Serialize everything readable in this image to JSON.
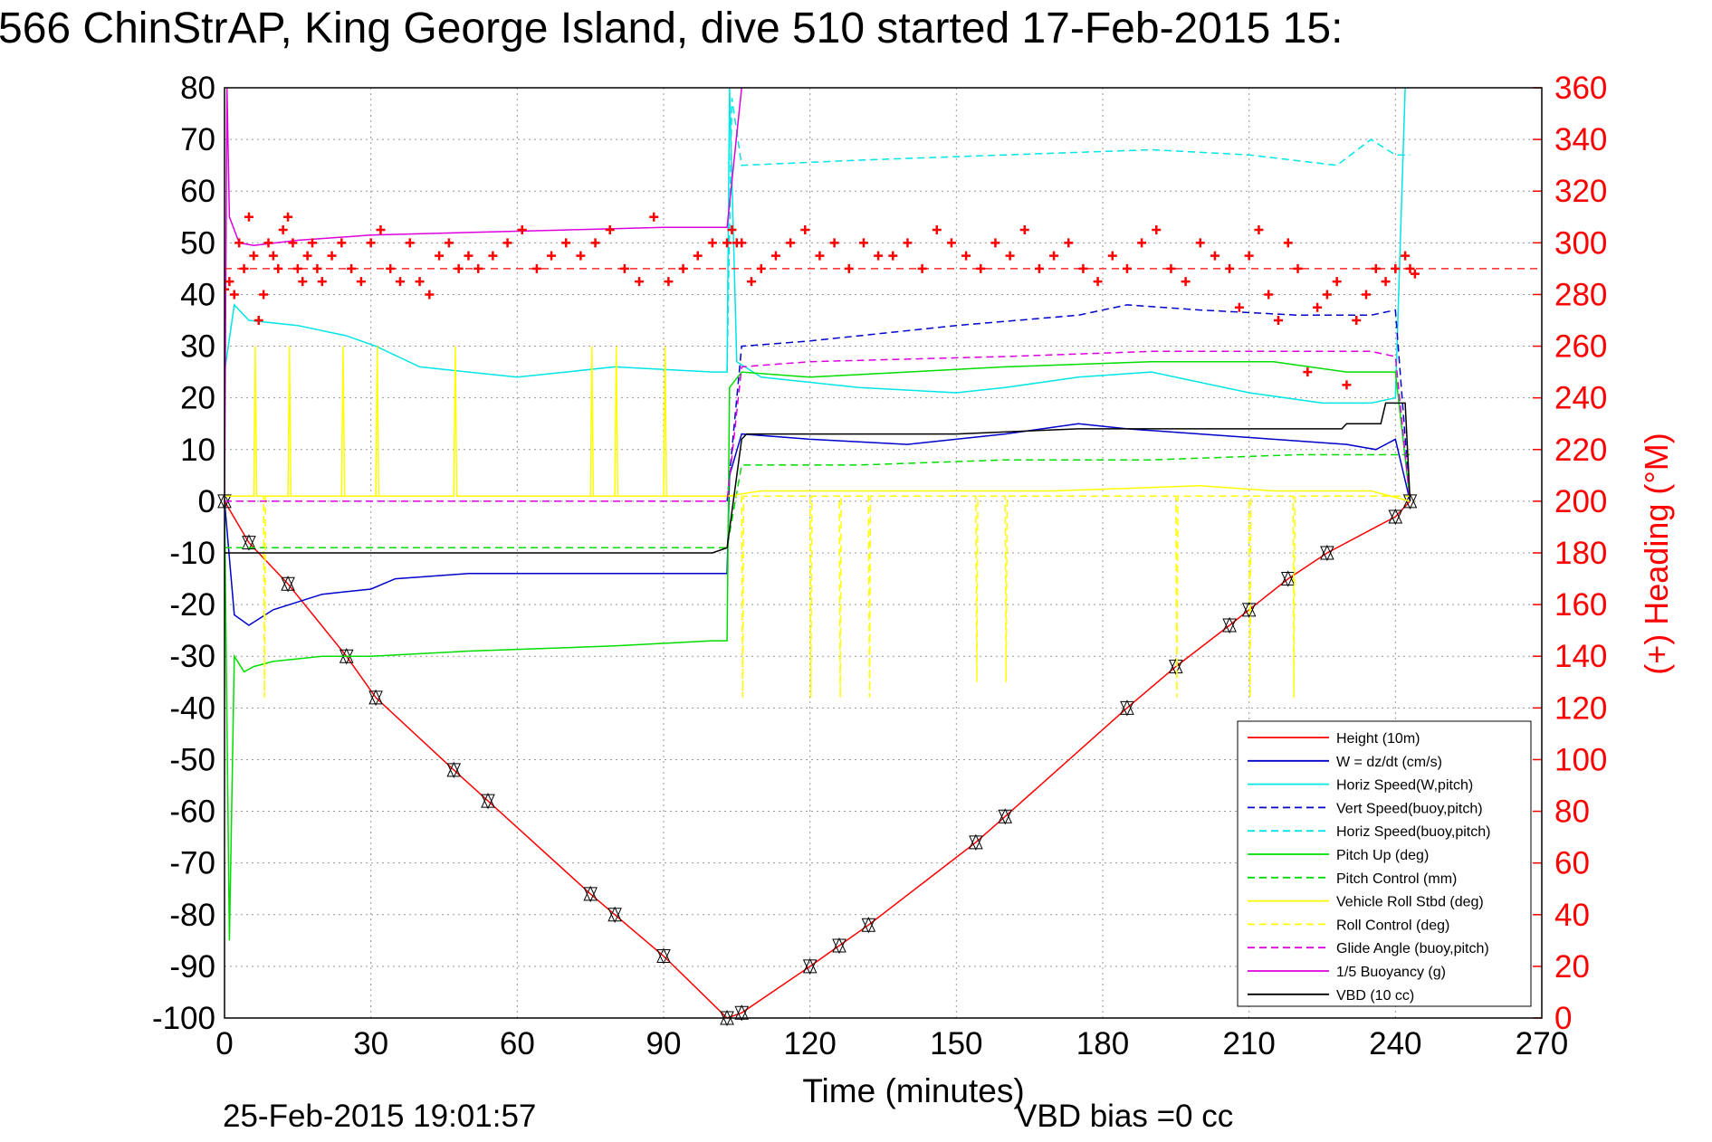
{
  "title": "566 ChinStrAP, King George Island, dive 510 started 17-Feb-2015 15:",
  "footer": {
    "timestamp": "25-Feb-2015 19:01:57",
    "vbd_bias": "VBD bias =0 cc"
  },
  "colors": {
    "red": "#ff0000",
    "blue": "#0000cc",
    "cyan": "#00e5e5",
    "green": "#00dd00",
    "yellow": "#ffff00",
    "magenta": "#dd00dd",
    "black": "#000000",
    "grid": "#999999"
  },
  "chart_data": {
    "type": "line",
    "xlabel": "Time (minutes)",
    "ylabel_right": "(+) Heading (°M)",
    "xlim": [
      0,
      270
    ],
    "ylim_left": [
      -100,
      80
    ],
    "ylim_right": [
      0,
      360
    ],
    "x_ticks": [
      "0",
      "30",
      "60",
      "90",
      "120",
      "150",
      "180",
      "210",
      "240",
      "270"
    ],
    "y_ticks_left": [
      "80",
      "70",
      "60",
      "50",
      "40",
      "30",
      "20",
      "10",
      "0",
      "-10",
      "-20",
      "-30",
      "-40",
      "-50",
      "-60",
      "-70",
      "-80",
      "-90",
      "-100"
    ],
    "y_ticks_right": [
      "360",
      "340",
      "320",
      "300",
      "280",
      "260",
      "240",
      "220",
      "200",
      "180",
      "160",
      "140",
      "120",
      "100",
      "80",
      "60",
      "40",
      "20",
      "0"
    ],
    "grid": true,
    "legend_position": "bottom-right",
    "legend": [
      {
        "label": "Height (10m)",
        "color": "#ff0000",
        "style": "solid"
      },
      {
        "label": "W = dz/dt (cm/s)",
        "color": "#0000cc",
        "style": "solid"
      },
      {
        "label": "Horiz Speed(W,pitch)",
        "color": "#00e5e5",
        "style": "solid"
      },
      {
        "label": "Vert Speed(buoy,pitch)",
        "color": "#0000cc",
        "style": "dashed"
      },
      {
        "label": "Horiz Speed(buoy,pitch)",
        "color": "#00e5e5",
        "style": "dashed"
      },
      {
        "label": "Pitch Up (deg)",
        "color": "#00dd00",
        "style": "solid"
      },
      {
        "label": "Pitch Control (mm)",
        "color": "#00dd00",
        "style": "dashed"
      },
      {
        "label": "Vehicle Roll Stbd (deg)",
        "color": "#ffff00",
        "style": "solid"
      },
      {
        "label": "Roll Control (deg)",
        "color": "#ffff00",
        "style": "dashed"
      },
      {
        "label": "Glide Angle (buoy,pitch)",
        "color": "#dd00dd",
        "style": "dashed"
      },
      {
        "label": "1/5 Buoyancy (g)",
        "color": "#dd00dd",
        "style": "solid"
      },
      {
        "label": "VBD (10 cc)",
        "color": "#000000",
        "style": "solid"
      }
    ],
    "series": [
      {
        "name": "Height (10m)",
        "color": "#ff0000",
        "style": "solid",
        "x": [
          0,
          5,
          13,
          25,
          31,
          47,
          54,
          75,
          80,
          90,
          103,
          106,
          120,
          126,
          132,
          154,
          160,
          185,
          195,
          206,
          210,
          218,
          226,
          240,
          243
        ],
        "y": [
          0,
          -8,
          -16,
          -30,
          -38,
          -52,
          -58,
          -76,
          -80,
          -88,
          -100,
          -99,
          -90,
          -86,
          -82,
          -66,
          -61,
          -40,
          -32,
          -24,
          -21,
          -15,
          -10,
          -3,
          0
        ]
      },
      {
        "name": "W = dz/dt (cm/s)",
        "color": "#0000cc",
        "style": "solid",
        "x": [
          0,
          2,
          5,
          10,
          20,
          30,
          35,
          50,
          70,
          90,
          103,
          103.5,
          106,
          120,
          140,
          160,
          175,
          185,
          200,
          215,
          230,
          236,
          240,
          243
        ],
        "y": [
          0,
          -22,
          -24,
          -21,
          -18,
          -17,
          -15,
          -14,
          -14,
          -14,
          -14,
          5,
          13,
          12,
          11,
          13,
          15,
          14,
          13,
          12,
          11,
          10,
          12,
          0
        ]
      },
      {
        "name": "Horiz Speed(W,pitch)",
        "color": "#00e5e5",
        "style": "solid",
        "x": [
          0,
          2,
          5,
          15,
          25,
          31,
          40,
          60,
          80,
          100,
          103,
          103.5,
          105,
          110,
          130,
          150,
          160,
          175,
          190,
          210,
          225,
          235,
          240,
          242,
          243
        ],
        "y": [
          25,
          38,
          35,
          34,
          32,
          30,
          26,
          24,
          26,
          25,
          25,
          80,
          27,
          24,
          22,
          21,
          22,
          24,
          25,
          21,
          19,
          19,
          20,
          80,
          80
        ]
      },
      {
        "name": "Vert Speed(buoy,pitch)",
        "color": "#0000cc",
        "style": "dashed",
        "x": [
          103,
          106,
          120,
          150,
          175,
          185,
          200,
          220,
          235,
          240,
          243
        ],
        "y": [
          0,
          30,
          31,
          34,
          36,
          38,
          37,
          36,
          36,
          37,
          0
        ]
      },
      {
        "name": "Horiz Speed(buoy,pitch)",
        "color": "#00e5e5",
        "style": "dashed",
        "x": [
          103,
          104,
          106,
          130,
          160,
          190,
          210,
          228,
          235,
          240,
          243
        ],
        "y": [
          25,
          78,
          65,
          66,
          67,
          68,
          67,
          65,
          70,
          67,
          67
        ]
      },
      {
        "name": "Pitch Up (deg)",
        "color": "#00dd00",
        "style": "solid",
        "x": [
          0,
          1,
          2,
          4,
          6,
          10,
          20,
          30,
          50,
          80,
          100,
          103,
          103.5,
          106,
          120,
          140,
          160,
          190,
          215,
          230,
          240,
          243
        ],
        "y": [
          0,
          -85,
          -30,
          -33,
          -32,
          -31,
          -30,
          -30,
          -29,
          -28,
          -27,
          -27,
          22,
          25,
          24,
          25,
          26,
          27,
          27,
          25,
          25,
          0
        ]
      },
      {
        "name": "Pitch Control (mm)",
        "color": "#00dd00",
        "style": "dashed",
        "x": [
          0,
          5,
          103,
          106,
          130,
          160,
          190,
          220,
          243
        ],
        "y": [
          -9,
          -9,
          -9,
          7,
          7,
          8,
          8,
          9,
          9
        ]
      },
      {
        "name": "Vehicle Roll Stbd (deg)",
        "color": "#ffff00",
        "style": "solid",
        "x": [
          0,
          6,
          6.3,
          6.6,
          13,
          13.3,
          13.6,
          24,
          24.3,
          24.6,
          31,
          31.3,
          31.6,
          47,
          47.3,
          47.6,
          75,
          75.3,
          75.6,
          80,
          80.3,
          80.6,
          90,
          90.3,
          90.6,
          103,
          110,
          170,
          200,
          215,
          235,
          243
        ],
        "y": [
          1,
          1,
          30,
          1,
          1,
          30,
          1,
          1,
          30,
          1,
          1,
          30,
          1,
          1,
          30,
          1,
          1,
          30,
          1,
          1,
          30,
          1,
          1,
          30,
          1,
          1,
          2,
          2,
          3,
          2,
          2,
          0
        ]
      },
      {
        "name": "Roll Control (deg)",
        "color": "#ffff00",
        "style": "dashed",
        "x": [
          0,
          8,
          8.2,
          8.4,
          103,
          106,
          106.2,
          106.4,
          120,
          120.2,
          120.4,
          126,
          126.2,
          126.4,
          132,
          132.2,
          132.4,
          154,
          154.2,
          154.4,
          160,
          160.2,
          160.4,
          195,
          195.2,
          195.4,
          210,
          210.2,
          210.4,
          219,
          219.2,
          219.4,
          243
        ],
        "y": [
          1,
          1,
          -38,
          1,
          1,
          1,
          -38,
          1,
          1,
          -38,
          1,
          1,
          -38,
          1,
          1,
          -38,
          1,
          1,
          -35,
          1,
          1,
          -35,
          1,
          1,
          -38,
          1,
          1,
          -38,
          1,
          1,
          -38,
          1,
          1
        ]
      },
      {
        "name": "Glide Angle (buoy,pitch)",
        "color": "#dd00dd",
        "style": "dashed",
        "x": [
          0,
          103,
          106,
          120,
          160,
          190,
          215,
          235,
          240,
          243
        ],
        "y": [
          0,
          0,
          26,
          27,
          28,
          29,
          29,
          29,
          28,
          0
        ]
      },
      {
        "name": "1/5 Buoyancy (g)",
        "color": "#dd00dd",
        "style": "solid",
        "x": [
          0,
          0.5,
          1,
          3,
          6,
          15,
          30,
          50,
          70,
          90,
          103,
          106
        ],
        "y": [
          0,
          80,
          55,
          50,
          49.5,
          50.5,
          51.5,
          52,
          52.5,
          53,
          53,
          80
        ]
      },
      {
        "name": "VBD (10 cc)",
        "color": "#000000",
        "style": "solid",
        "x": [
          0,
          3,
          10,
          50,
          100,
          103,
          106,
          107,
          130,
          150,
          175,
          190,
          210,
          229,
          230,
          237,
          238,
          242,
          243
        ],
        "y": [
          -10,
          -10,
          -10,
          -10,
          -10,
          -9,
          12,
          13,
          13,
          13,
          14,
          14,
          14,
          14,
          15,
          15,
          19,
          19,
          0
        ]
      },
      {
        "name": "(+) Heading (°M)",
        "color": "#ff0000",
        "style": "marker",
        "axis": "right",
        "x": [
          0,
          1,
          2,
          3,
          4,
          5,
          6,
          7,
          8,
          9,
          10,
          11,
          12,
          13,
          14,
          15,
          16,
          17,
          18,
          19,
          20,
          22,
          24,
          26,
          28,
          30,
          32,
          34,
          36,
          38,
          40,
          42,
          44,
          46,
          48,
          50,
          52,
          55,
          58,
          61,
          64,
          67,
          70,
          73,
          76,
          79,
          82,
          85,
          88,
          91,
          94,
          97,
          100,
          103,
          104,
          105,
          106,
          108,
          110,
          113,
          116,
          119,
          122,
          125,
          128,
          131,
          134,
          137,
          140,
          143,
          146,
          149,
          152,
          155,
          158,
          161,
          164,
          167,
          170,
          173,
          176,
          179,
          182,
          185,
          188,
          191,
          194,
          197,
          200,
          203,
          206,
          208,
          210,
          212,
          214,
          216,
          218,
          220,
          222,
          224,
          226,
          228,
          230,
          232,
          234,
          236,
          238,
          240,
          242,
          243,
          244
        ],
        "y": [
          282,
          285,
          280,
          300,
          290,
          310,
          295,
          270,
          280,
          300,
          295,
          290,
          305,
          310,
          300,
          290,
          285,
          295,
          300,
          290,
          285,
          295,
          300,
          290,
          285,
          300,
          305,
          290,
          285,
          300,
          285,
          280,
          295,
          300,
          290,
          295,
          290,
          295,
          300,
          305,
          290,
          295,
          300,
          295,
          300,
          305,
          290,
          285,
          310,
          285,
          290,
          295,
          300,
          300,
          305,
          300,
          300,
          285,
          290,
          295,
          300,
          305,
          295,
          300,
          290,
          300,
          295,
          295,
          300,
          290,
          305,
          300,
          295,
          290,
          300,
          295,
          305,
          290,
          295,
          300,
          290,
          285,
          295,
          290,
          300,
          305,
          290,
          285,
          300,
          295,
          290,
          275,
          295,
          305,
          280,
          270,
          300,
          290,
          250,
          275,
          280,
          285,
          245,
          270,
          280,
          290,
          285,
          290,
          295,
          290,
          288
        ]
      }
    ]
  }
}
